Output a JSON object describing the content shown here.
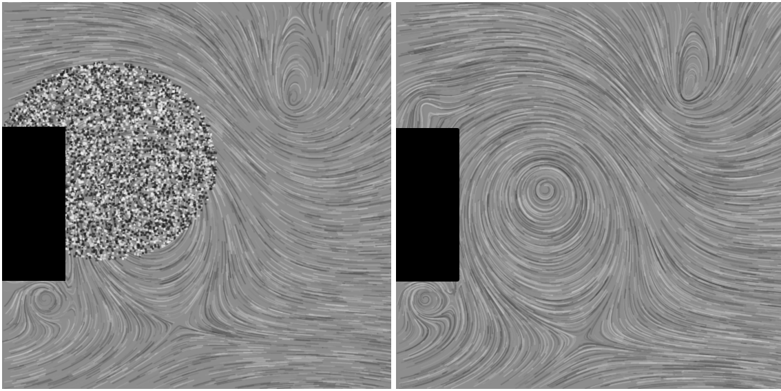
{
  "figure": {
    "panels": [
      {
        "id": "left",
        "description_key": "lic-noisy",
        "obstacle_color": "#000000"
      },
      {
        "id": "right",
        "description_key": "lic-smooth",
        "obstacle_color": "#000000"
      }
    ],
    "background": "#ffffff"
  }
}
